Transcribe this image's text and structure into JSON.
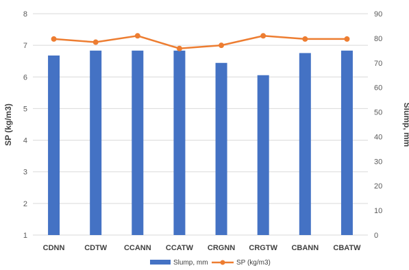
{
  "chart_data": {
    "type": "bar+line",
    "categories": [
      "CDNN",
      "CDTW",
      "CCANN",
      "CCATW",
      "CRGNN",
      "CRGTW",
      "CBANN",
      "CBATW"
    ],
    "series": [
      {
        "name": "Slump, mm",
        "type": "bar",
        "axis": "right",
        "color": "#4472C4",
        "values": [
          73,
          75,
          75,
          75,
          70,
          65,
          74,
          75
        ]
      },
      {
        "name": "SP (kg/m3)",
        "type": "line",
        "axis": "left",
        "color": "#ED7D31",
        "values": [
          7.2,
          7.1,
          7.3,
          6.9,
          7.0,
          7.3,
          7.2,
          7.2
        ]
      }
    ],
    "ylabel_left": "SP (kg/m3)",
    "ylabel_right": "Slump, mm",
    "ylim_left": [
      1,
      8
    ],
    "yticks_left": [
      "1",
      "2",
      "3",
      "4",
      "5",
      "6",
      "7",
      "8"
    ],
    "ylim_right": [
      0,
      90
    ],
    "yticks_right": [
      "0",
      "10",
      "20",
      "30",
      "40",
      "50",
      "60",
      "70",
      "80",
      "90"
    ],
    "grid": "horizontal",
    "legend": "bottom"
  }
}
